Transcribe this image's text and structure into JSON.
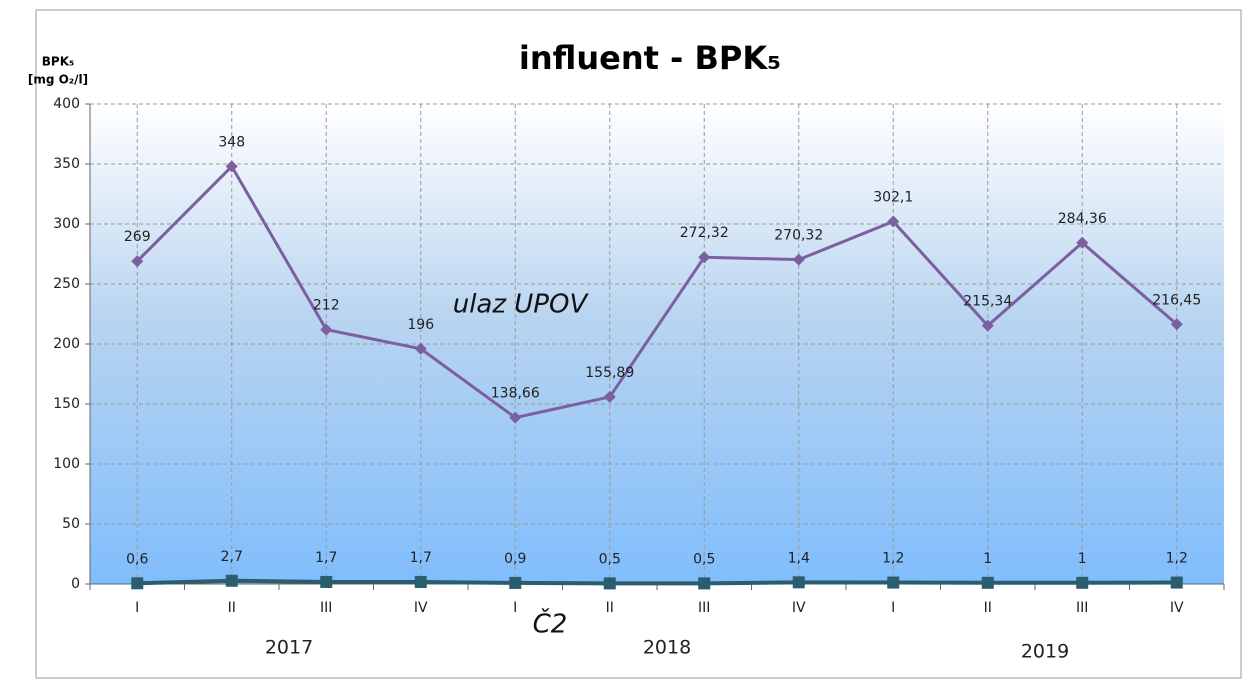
{
  "chart_data": {
    "type": "line",
    "title": "influent - BPK₅",
    "y_label": [
      "BPK₅",
      "[mg O₂/l]"
    ],
    "categories": [
      "I",
      "II",
      "III",
      "IV",
      "I",
      "II",
      "III",
      "IV",
      "I",
      "II",
      "III",
      "IV"
    ],
    "years": [
      "2017",
      "2018",
      "2019"
    ],
    "series": [
      {
        "name": "ulaz UPOV",
        "color": "#7b5fa0",
        "marker": "diamond",
        "values": [
          269,
          348,
          212,
          196,
          138.66,
          155.89,
          272.32,
          270.32,
          302.1,
          215.34,
          284.36,
          216.45
        ],
        "value_labels": [
          "269",
          "348",
          "212",
          "196",
          "138,66",
          "155,89",
          "272,32",
          "270,32",
          "302,1",
          "215,34",
          "284,36",
          "216,45"
        ]
      },
      {
        "name": "Č2",
        "color": "#2a5d6e",
        "marker": "square",
        "values": [
          0.6,
          2.7,
          1.7,
          1.7,
          0.9,
          0.5,
          0.5,
          1.4,
          1.2,
          1,
          1,
          1.2
        ],
        "value_labels": [
          "0,6",
          "2,7",
          "1,7",
          "1,7",
          "0,9",
          "0,5",
          "0,5",
          "1,4",
          "1,2",
          "1",
          "1",
          "1,2"
        ]
      }
    ],
    "ylim": [
      0,
      400
    ],
    "yticks": [
      0,
      50,
      100,
      150,
      200,
      250,
      300,
      350,
      400
    ],
    "grid": true
  }
}
